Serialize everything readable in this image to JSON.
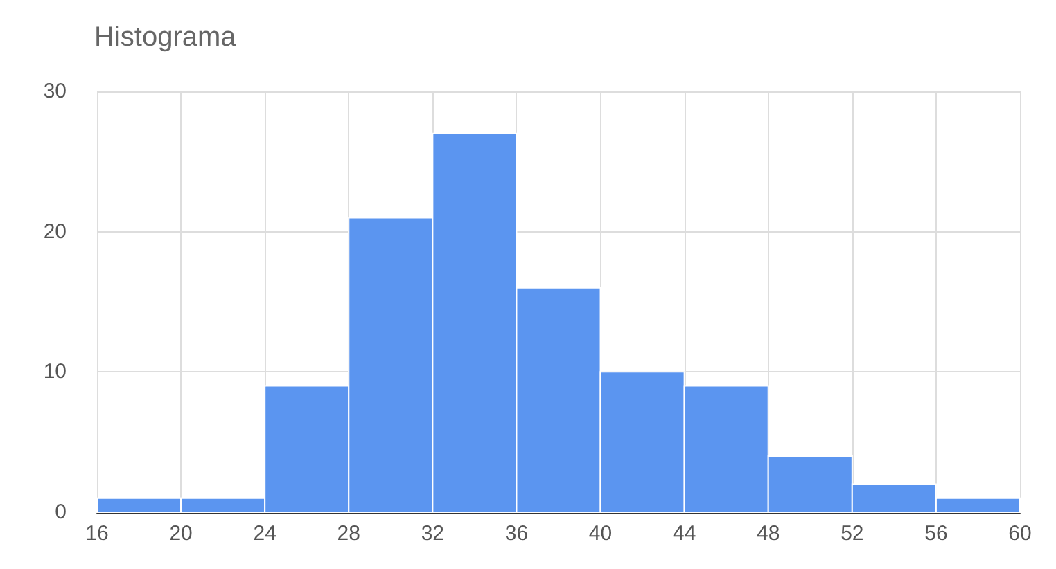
{
  "chart_data": {
    "type": "histogram",
    "title": "Histograma",
    "bins": [
      16,
      20,
      24,
      28,
      32,
      36,
      40,
      44,
      48,
      52,
      56,
      60
    ],
    "values": [
      1,
      1,
      9,
      21,
      27,
      16,
      10,
      9,
      4,
      2,
      1
    ],
    "color": "#5b95f0",
    "xlim": [
      16,
      60
    ],
    "xticks": [
      16,
      20,
      24,
      28,
      32,
      36,
      40,
      44,
      48,
      52,
      56,
      60
    ],
    "ylim": [
      0,
      30
    ],
    "yticks": [
      0,
      10,
      20,
      30
    ],
    "grid": true
  }
}
